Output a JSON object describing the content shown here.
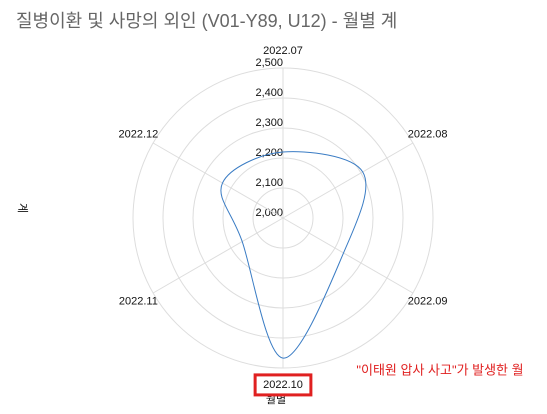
{
  "chart_data": {
    "type": "radar",
    "title": "질병이환 및 사망의 외인 (V01-Y89, U12) - 월별 계",
    "x_label": "월별",
    "y_label": "계",
    "categories": [
      "2022.07",
      "2022.08",
      "2022.09",
      "2022.10",
      "2022.11",
      "2022.12"
    ],
    "values": [
      2220,
      2307,
      2233,
      2467,
      2157,
      2233
    ],
    "color": "#3a7cc4",
    "ylim": [
      2000,
      2500
    ],
    "yticks": [
      {
        "value": 2000,
        "label": "2,000"
      },
      {
        "value": 2100,
        "label": "2,100"
      },
      {
        "value": 2200,
        "label": "2,200"
      },
      {
        "value": 2300,
        "label": "2,300"
      },
      {
        "value": 2400,
        "label": "2,400"
      },
      {
        "value": 2500,
        "label": "2,500"
      }
    ],
    "highlight_category": 3,
    "annotation": "\"이태원 압사 사고\"가 발생한 월"
  }
}
